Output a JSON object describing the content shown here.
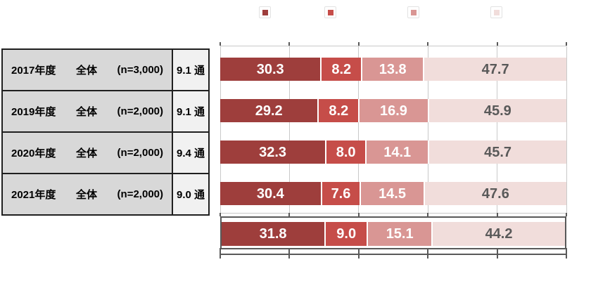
{
  "legend": {
    "items": [
      {
        "label": "",
        "color": "#9E3E3C"
      },
      {
        "label": "",
        "color": "#C64D49"
      },
      {
        "label": "",
        "color": "#D99694"
      },
      {
        "label": "",
        "color": "#F1DDDB"
      }
    ]
  },
  "table": {
    "rows": [
      {
        "year": "2017年度",
        "group": "全体",
        "n": "(n=3,000)",
        "average": "9.1 通"
      },
      {
        "year": "2019年度",
        "group": "全体",
        "n": "(n=2,000)",
        "average": "9.1 通"
      },
      {
        "year": "2020年度",
        "group": "全体",
        "n": "(n=2,000)",
        "average": "9.4 通"
      },
      {
        "year": "2021年度",
        "group": "全体",
        "n": "(n=2,000)",
        "average": "9.0 通"
      }
    ]
  },
  "chart_data": {
    "type": "bar",
    "orientation": "horizontal",
    "stacked": true,
    "title": "",
    "categories": [
      "2017年度 全体 (n=3,000)",
      "2019年度 全体 (n=2,000)",
      "2020年度 全体 (n=2,000)",
      "2021年度 全体 (n=2,000)"
    ],
    "series": [
      {
        "name": "segment-1",
        "color": "#9E3E3C",
        "text_color": "#FFFFFF",
        "values": [
          30.3,
          29.2,
          32.3,
          30.4
        ]
      },
      {
        "name": "segment-2",
        "color": "#C64D49",
        "text_color": "#FFFFFF",
        "values": [
          8.2,
          8.2,
          8.0,
          7.6
        ]
      },
      {
        "name": "segment-3",
        "color": "#D99694",
        "text_color": "#FFFFFF",
        "values": [
          13.8,
          16.9,
          14.1,
          14.5
        ]
      },
      {
        "name": "segment-4",
        "color": "#F1DDDB",
        "text_color": "#595959",
        "values": [
          47.7,
          45.9,
          45.7,
          47.6
        ]
      }
    ],
    "summary_bar": {
      "values": [
        31.8,
        9.0,
        15.1,
        44.2
      ]
    },
    "averages_column": [
      "9.1 通",
      "9.1 通",
      "9.4 通",
      "9.0 通"
    ],
    "xlim": [
      0,
      100
    ],
    "tick_interval": 20,
    "grid": true,
    "legend_position": "top"
  },
  "colors": {
    "grid": "#C9C9C9",
    "axis_frame": "#595959",
    "table_label_bg": "#D8D8D8",
    "table_value_bg": "#F1F1F1",
    "table_border": "#1F1F1F"
  }
}
